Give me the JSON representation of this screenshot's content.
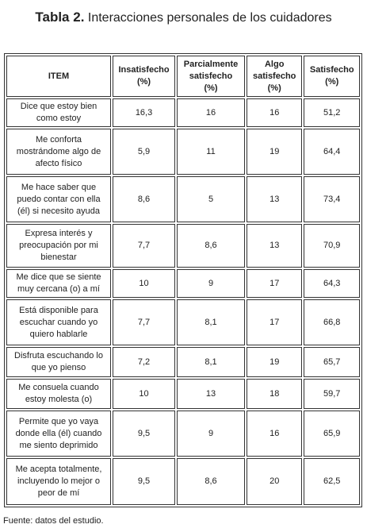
{
  "title": {
    "label": "Tabla 2.",
    "text": "Interacciones personales de los cuidadores"
  },
  "table": {
    "header": [
      "ITEM",
      "Insatisfecho (%)",
      "Parcialmente satisfecho (%)",
      "Algo satisfecho (%)",
      "Satisfecho (%)"
    ],
    "rows": [
      [
        "Dice que estoy bien como estoy",
        "16,3",
        "16",
        "16",
        "51,2"
      ],
      [
        "Me conforta mostrándome algo de afecto físico",
        "5,9",
        "11",
        "19",
        "64,4"
      ],
      [
        "Me hace saber que puedo contar con ella (él) si necesito ayuda",
        "8,6",
        "5",
        "13",
        "73,4"
      ],
      [
        "Expresa interés y preocupación por mi bienestar",
        "7,7",
        "8,6",
        "13",
        "70,9"
      ],
      [
        "Me dice que se siente muy cercana (o) a mí",
        "10",
        "9",
        "17",
        "64,3"
      ],
      [
        "Está disponible para escuchar cuando yo quiero hablarle",
        "7,7",
        "8,1",
        "17",
        "66,8"
      ],
      [
        "Disfruta escuchando lo que yo pienso",
        "7,2",
        "8,1",
        "19",
        "65,7"
      ],
      [
        "Me consuela cuando estoy molesta (o)",
        "10",
        "13",
        "18",
        "59,7"
      ],
      [
        "Permite que yo vaya donde ella (él) cuando me siento deprimido",
        "9,5",
        "9",
        "16",
        "65,9"
      ],
      [
        "Me acepta totalmente, incluyendo lo mejor o peor de mí",
        "9,5",
        "8,6",
        "20",
        "62,5"
      ]
    ]
  },
  "source": "Fuente: datos del estudio."
}
